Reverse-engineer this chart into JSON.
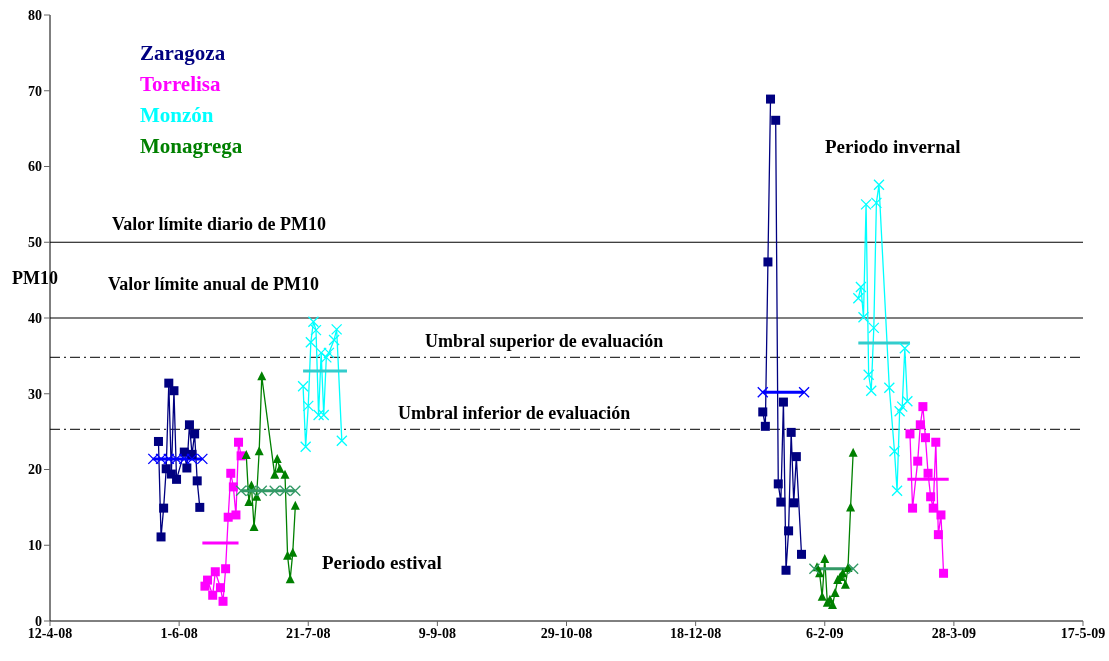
{
  "chart_data": {
    "type": "line",
    "ylabel": "PM10",
    "legend": "top left",
    "xlim": [
      "2008-04-12",
      "2009-05-17"
    ],
    "xticks": [
      {
        "value": "2008-04-12",
        "label": "12-4-08"
      },
      {
        "value": "2008-06-01",
        "label": "1-6-08"
      },
      {
        "value": "2008-07-21",
        "label": "21-7-08"
      },
      {
        "value": "2008-09-09",
        "label": "9-9-08"
      },
      {
        "value": "2008-10-29",
        "label": "29-10-08"
      },
      {
        "value": "2008-12-18",
        "label": "18-12-08"
      },
      {
        "value": "2009-02-06",
        "label": "6-2-09"
      },
      {
        "value": "2009-03-28",
        "label": "28-3-09"
      },
      {
        "value": "2009-05-17",
        "label": "17-5-09"
      }
    ],
    "ylim": [
      0,
      80
    ],
    "yticks": [
      0,
      10,
      20,
      30,
      40,
      50,
      60,
      70,
      80
    ],
    "series": [
      {
        "name": "Zaragoza",
        "color": "#000080",
        "marker": "square",
        "x": [
          "2008-05-24",
          "2008-05-25",
          "2008-05-26",
          "2008-05-27",
          "2008-05-28",
          "2008-05-29",
          "2008-05-30",
          "2008-05-31",
          "2008-06-03",
          "2008-06-04",
          "2008-06-05",
          "2008-06-06",
          "2008-06-07",
          "2008-06-08",
          "2008-06-09",
          "2008-10-01",
          "2009-01-13",
          "2009-01-14",
          "2009-01-15",
          "2009-01-16",
          "2009-01-17",
          "2009-01-18",
          "2009-01-19",
          "2009-01-20",
          "2009-01-21",
          "2009-01-22",
          "2009-01-23",
          "2009-01-24",
          "2009-01-25",
          "2009-01-26",
          "2009-01-28"
        ],
        "values": [
          23.7,
          11.1,
          14.9,
          20.1,
          31.4,
          19.4,
          30.4,
          18.7,
          22.3,
          20.2,
          25.9,
          22.0,
          24.7,
          18.5,
          15.0,
          null,
          27.6,
          25.7,
          47.4,
          68.9,
          null,
          66.1,
          18.1,
          15.7,
          28.9,
          6.7,
          11.9,
          24.9,
          15.6,
          21.7,
          8.8
        ]
      },
      {
        "name": "Torrelisa",
        "color": "#ff00ff",
        "marker": "square",
        "x": [
          "2008-06-11",
          "2008-06-12",
          "2008-06-14",
          "2008-06-15",
          "2008-06-17",
          "2008-06-18",
          "2008-06-19",
          "2008-06-20",
          "2008-06-21",
          "2008-06-22",
          "2008-06-23",
          "2008-06-24",
          "2008-06-25",
          "2008-10-01",
          "2009-03-11",
          "2009-03-12",
          "2009-03-14",
          "2009-03-15",
          "2009-03-16",
          "2009-03-17",
          "2009-03-18",
          "2009-03-19",
          "2009-03-20",
          "2009-03-21",
          "2009-03-22",
          "2009-03-23",
          "2009-03-24"
        ],
        "values": [
          4.6,
          5.4,
          3.4,
          6.5,
          4.4,
          2.6,
          6.9,
          13.7,
          19.5,
          17.7,
          14.0,
          23.6,
          21.8,
          null,
          24.7,
          14.9,
          21.1,
          25.9,
          28.3,
          24.2,
          19.5,
          16.4,
          14.9,
          23.6,
          11.4,
          14.0,
          6.3
        ]
      },
      {
        "name": "Monzón",
        "color": "#00ffff",
        "marker": "cross",
        "x": [
          "2008-07-19",
          "2008-07-20",
          "2008-07-21",
          "2008-07-22",
          "2008-07-23",
          "2008-07-24",
          "2008-07-25",
          "2008-07-26",
          "2008-07-27",
          "2008-07-28",
          "2008-07-29",
          "2008-07-31",
          "2008-08-01",
          "2008-08-03",
          "2008-10-01",
          "2009-02-19",
          "2009-02-20",
          "2009-02-21",
          "2009-02-22",
          "2009-02-23",
          "2009-02-24",
          "2009-02-25",
          "2009-02-26",
          "2009-02-27",
          "2009-03-03",
          "2009-03-05",
          "2009-03-06",
          "2009-03-07",
          "2009-03-08",
          "2009-03-09",
          "2009-03-10"
        ],
        "values": [
          31.0,
          23.0,
          28.4,
          36.8,
          39.5,
          38.4,
          27.2,
          35.4,
          27.2,
          34.8,
          35.4,
          37.1,
          38.5,
          23.8,
          null,
          42.6,
          44.1,
          40.1,
          55.0,
          32.5,
          30.4,
          38.7,
          55.2,
          57.6,
          30.8,
          22.4,
          17.2,
          27.7,
          28.3,
          36.0,
          29.0
        ]
      },
      {
        "name": "Monagrega",
        "color": "#008000",
        "marker": "triangle",
        "x": [
          "2008-06-27",
          "2008-06-28",
          "2008-06-29",
          "2008-06-30",
          "2008-07-01",
          "2008-07-02",
          "2008-07-03",
          "2008-07-08",
          "2008-07-09",
          "2008-07-10",
          "2008-07-12",
          "2008-07-13",
          "2008-07-14",
          "2008-07-15",
          "2008-07-16",
          "2008-10-01",
          "2009-02-03",
          "2009-02-04",
          "2009-02-05",
          "2009-02-06",
          "2009-02-07",
          "2009-02-08",
          "2009-02-09",
          "2009-02-10",
          "2009-02-11",
          "2009-02-12",
          "2009-02-13",
          "2009-02-14",
          "2009-02-15",
          "2009-02-16",
          "2009-02-17"
        ],
        "values": [
          21.9,
          15.7,
          17.9,
          12.4,
          16.4,
          22.4,
          32.3,
          19.3,
          21.4,
          20.1,
          19.3,
          8.6,
          5.5,
          9.0,
          15.2,
          null,
          7.1,
          6.3,
          3.2,
          8.2,
          2.4,
          2.8,
          2.1,
          3.7,
          5.4,
          5.8,
          6.3,
          4.8,
          7.0,
          15.0,
          22.2
        ]
      },
      {
        "color": "#0000ff",
        "marker": "cross",
        "x": [
          "2008-05-22",
          "2008-05-25",
          "2008-05-28",
          "2008-05-31",
          "2008-06-03",
          "2008-06-06",
          "2008-06-10",
          "2008-10-01",
          "2009-01-13",
          "2009-01-29"
        ],
        "values": [
          21.4,
          21.4,
          21.4,
          21.4,
          21.4,
          21.4,
          21.4,
          null,
          30.2,
          30.2
        ]
      },
      {
        "color": "#ff00ff",
        "marker": "none",
        "x": [
          "2008-06-10",
          "2008-06-24",
          "2008-10-01",
          "2009-03-10",
          "2009-03-26"
        ],
        "values": [
          10.3,
          10.3,
          null,
          18.7,
          18.7
        ]
      },
      {
        "color": "#33cccc",
        "marker": "none",
        "x": [
          "2008-07-19",
          "2008-08-05",
          "2008-10-01",
          "2009-02-19",
          "2009-03-11"
        ],
        "values": [
          33.0,
          33.0,
          null,
          36.7,
          36.7
        ]
      },
      {
        "color": "#339966",
        "marker": "cross",
        "x": [
          "2008-06-25",
          "2008-06-29",
          "2008-07-03",
          "2008-07-08",
          "2008-07-12",
          "2008-07-16",
          "2008-10-01",
          "2009-02-02",
          "2009-02-17"
        ],
        "values": [
          17.2,
          17.2,
          17.2,
          17.2,
          17.2,
          17.2,
          null,
          6.9,
          6.9
        ]
      }
    ],
    "ref_lines": [
      {
        "axis": "y",
        "value": 50,
        "label": "Valor límite diario de PM10",
        "color": "#000000",
        "line_style": "solid"
      },
      {
        "axis": "y",
        "value": 40,
        "label": "Valor límite anual de PM10",
        "color": "#000000",
        "line_style": "solid"
      },
      {
        "axis": "y",
        "value": 34.8,
        "label": "Umbral superior de evaluación",
        "color": "#333333",
        "line_style": "dashed"
      },
      {
        "axis": "y",
        "value": 25.3,
        "label": "Umbral inferior de evaluación",
        "color": "#333333",
        "line_style": "dashed"
      }
    ],
    "annotations": [
      "Periodo estival",
      "Periodo invernal"
    ]
  }
}
